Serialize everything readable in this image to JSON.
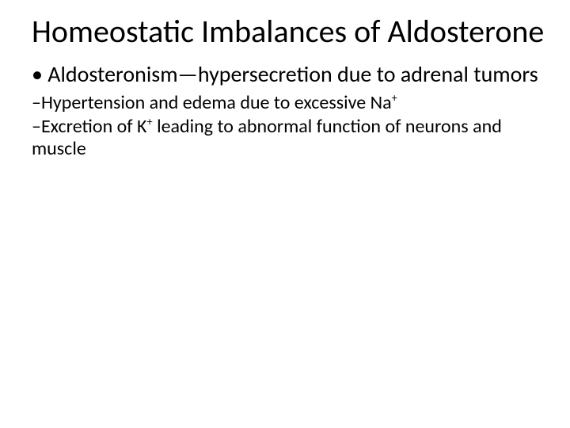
{
  "slide": {
    "title": "Homeostatic Imbalances of Aldosterone",
    "title_fontsize": 40,
    "title_color": "#000000",
    "bullets": {
      "l1": {
        "text": "• Aldosteronism—hypersecretion due to adrenal tumors",
        "fontsize": 28
      },
      "l2a": {
        "prefix": "–Hypertension and edema due to excessive Na",
        "sup": "+",
        "fontsize": 24
      },
      "l2b": {
        "prefix": "–Excretion of K",
        "sup": "+",
        "suffix": " leading to abnormal function of neurons and muscle",
        "fontsize": 24
      }
    },
    "background_color": "#ffffff",
    "text_color": "#000000"
  }
}
